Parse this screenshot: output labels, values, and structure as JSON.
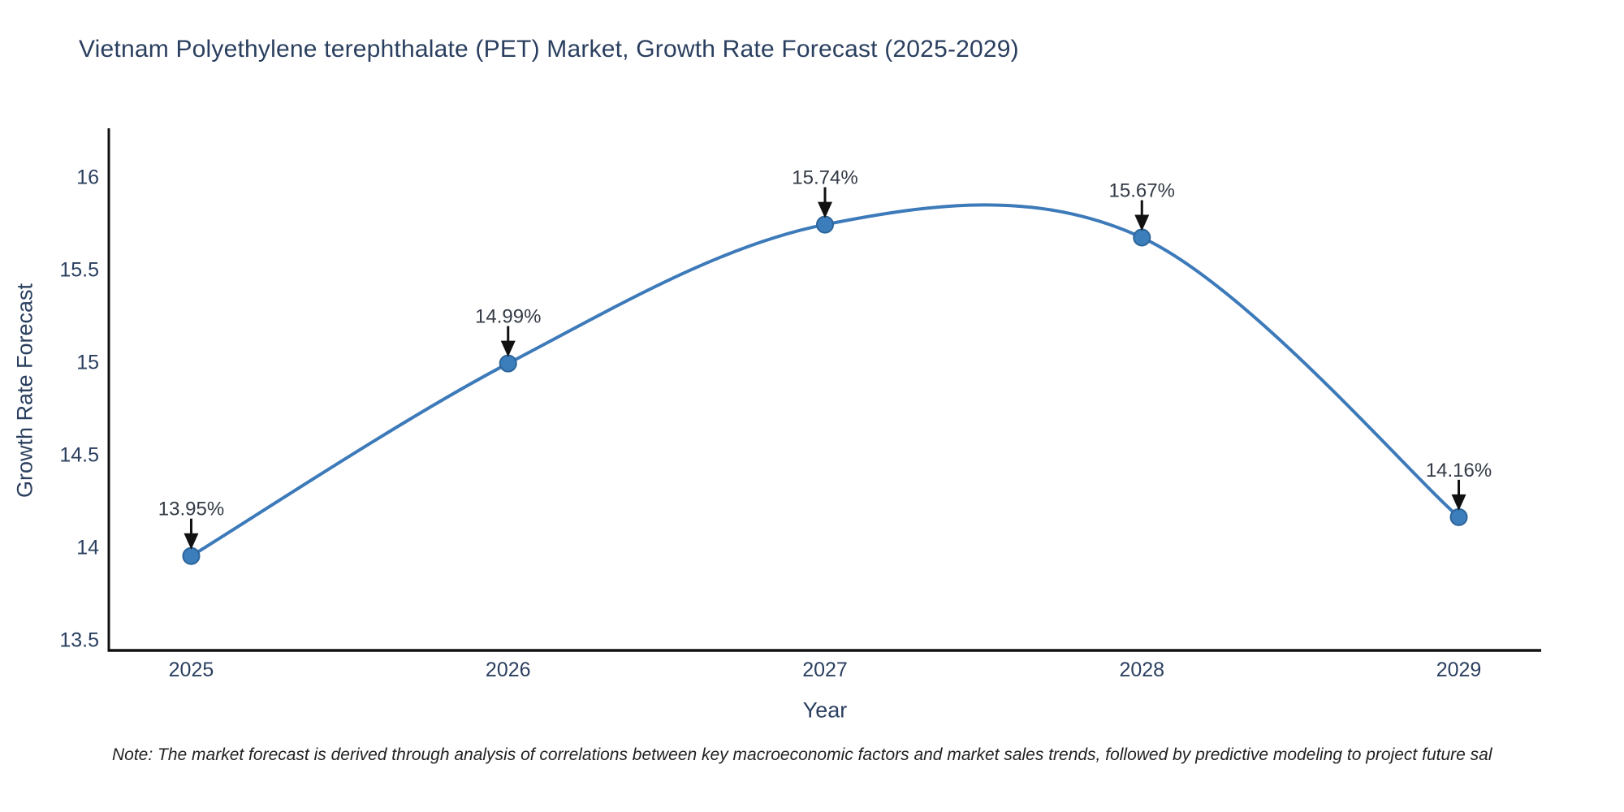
{
  "footnote": "Note: The market forecast is derived through analysis of correlations between key macroeconomic factors and market sales trends, followed by predictive modeling to project future sal",
  "chart_data": {
    "type": "line",
    "title": "Vietnam Polyethylene terephthalate (PET) Market, Growth Rate Forecast (2025-2029)",
    "xlabel": "Year",
    "ylabel": "Growth Rate Forecast",
    "x": [
      2025,
      2026,
      2027,
      2028,
      2029
    ],
    "y": [
      13.95,
      14.99,
      15.74,
      15.67,
      14.16
    ],
    "point_labels": [
      "13.95%",
      "14.99%",
      "15.74%",
      "15.67%",
      "14.16%"
    ],
    "x_tick_labels": [
      "2025",
      "2026",
      "2027",
      "2028",
      "2029"
    ],
    "y_ticks": [
      13.5,
      14,
      14.5,
      15,
      15.5,
      16
    ],
    "y_tick_labels": [
      "13.5",
      "14",
      "14.5",
      "15",
      "15.5",
      "16"
    ],
    "xlim": [
      2024.74,
      2029.26
    ],
    "ylim": [
      13.44,
      16.26
    ],
    "line_shape": "spline",
    "grid": false,
    "legend": "none",
    "colors": {
      "line": "#3d7ab9",
      "marker_fill": "#3c7ebc",
      "marker_edge": "#2d659a",
      "axis": "#111111",
      "arrow": "#111111",
      "title_text": "#2a3f5f",
      "annotation_text": "#333a45"
    }
  }
}
